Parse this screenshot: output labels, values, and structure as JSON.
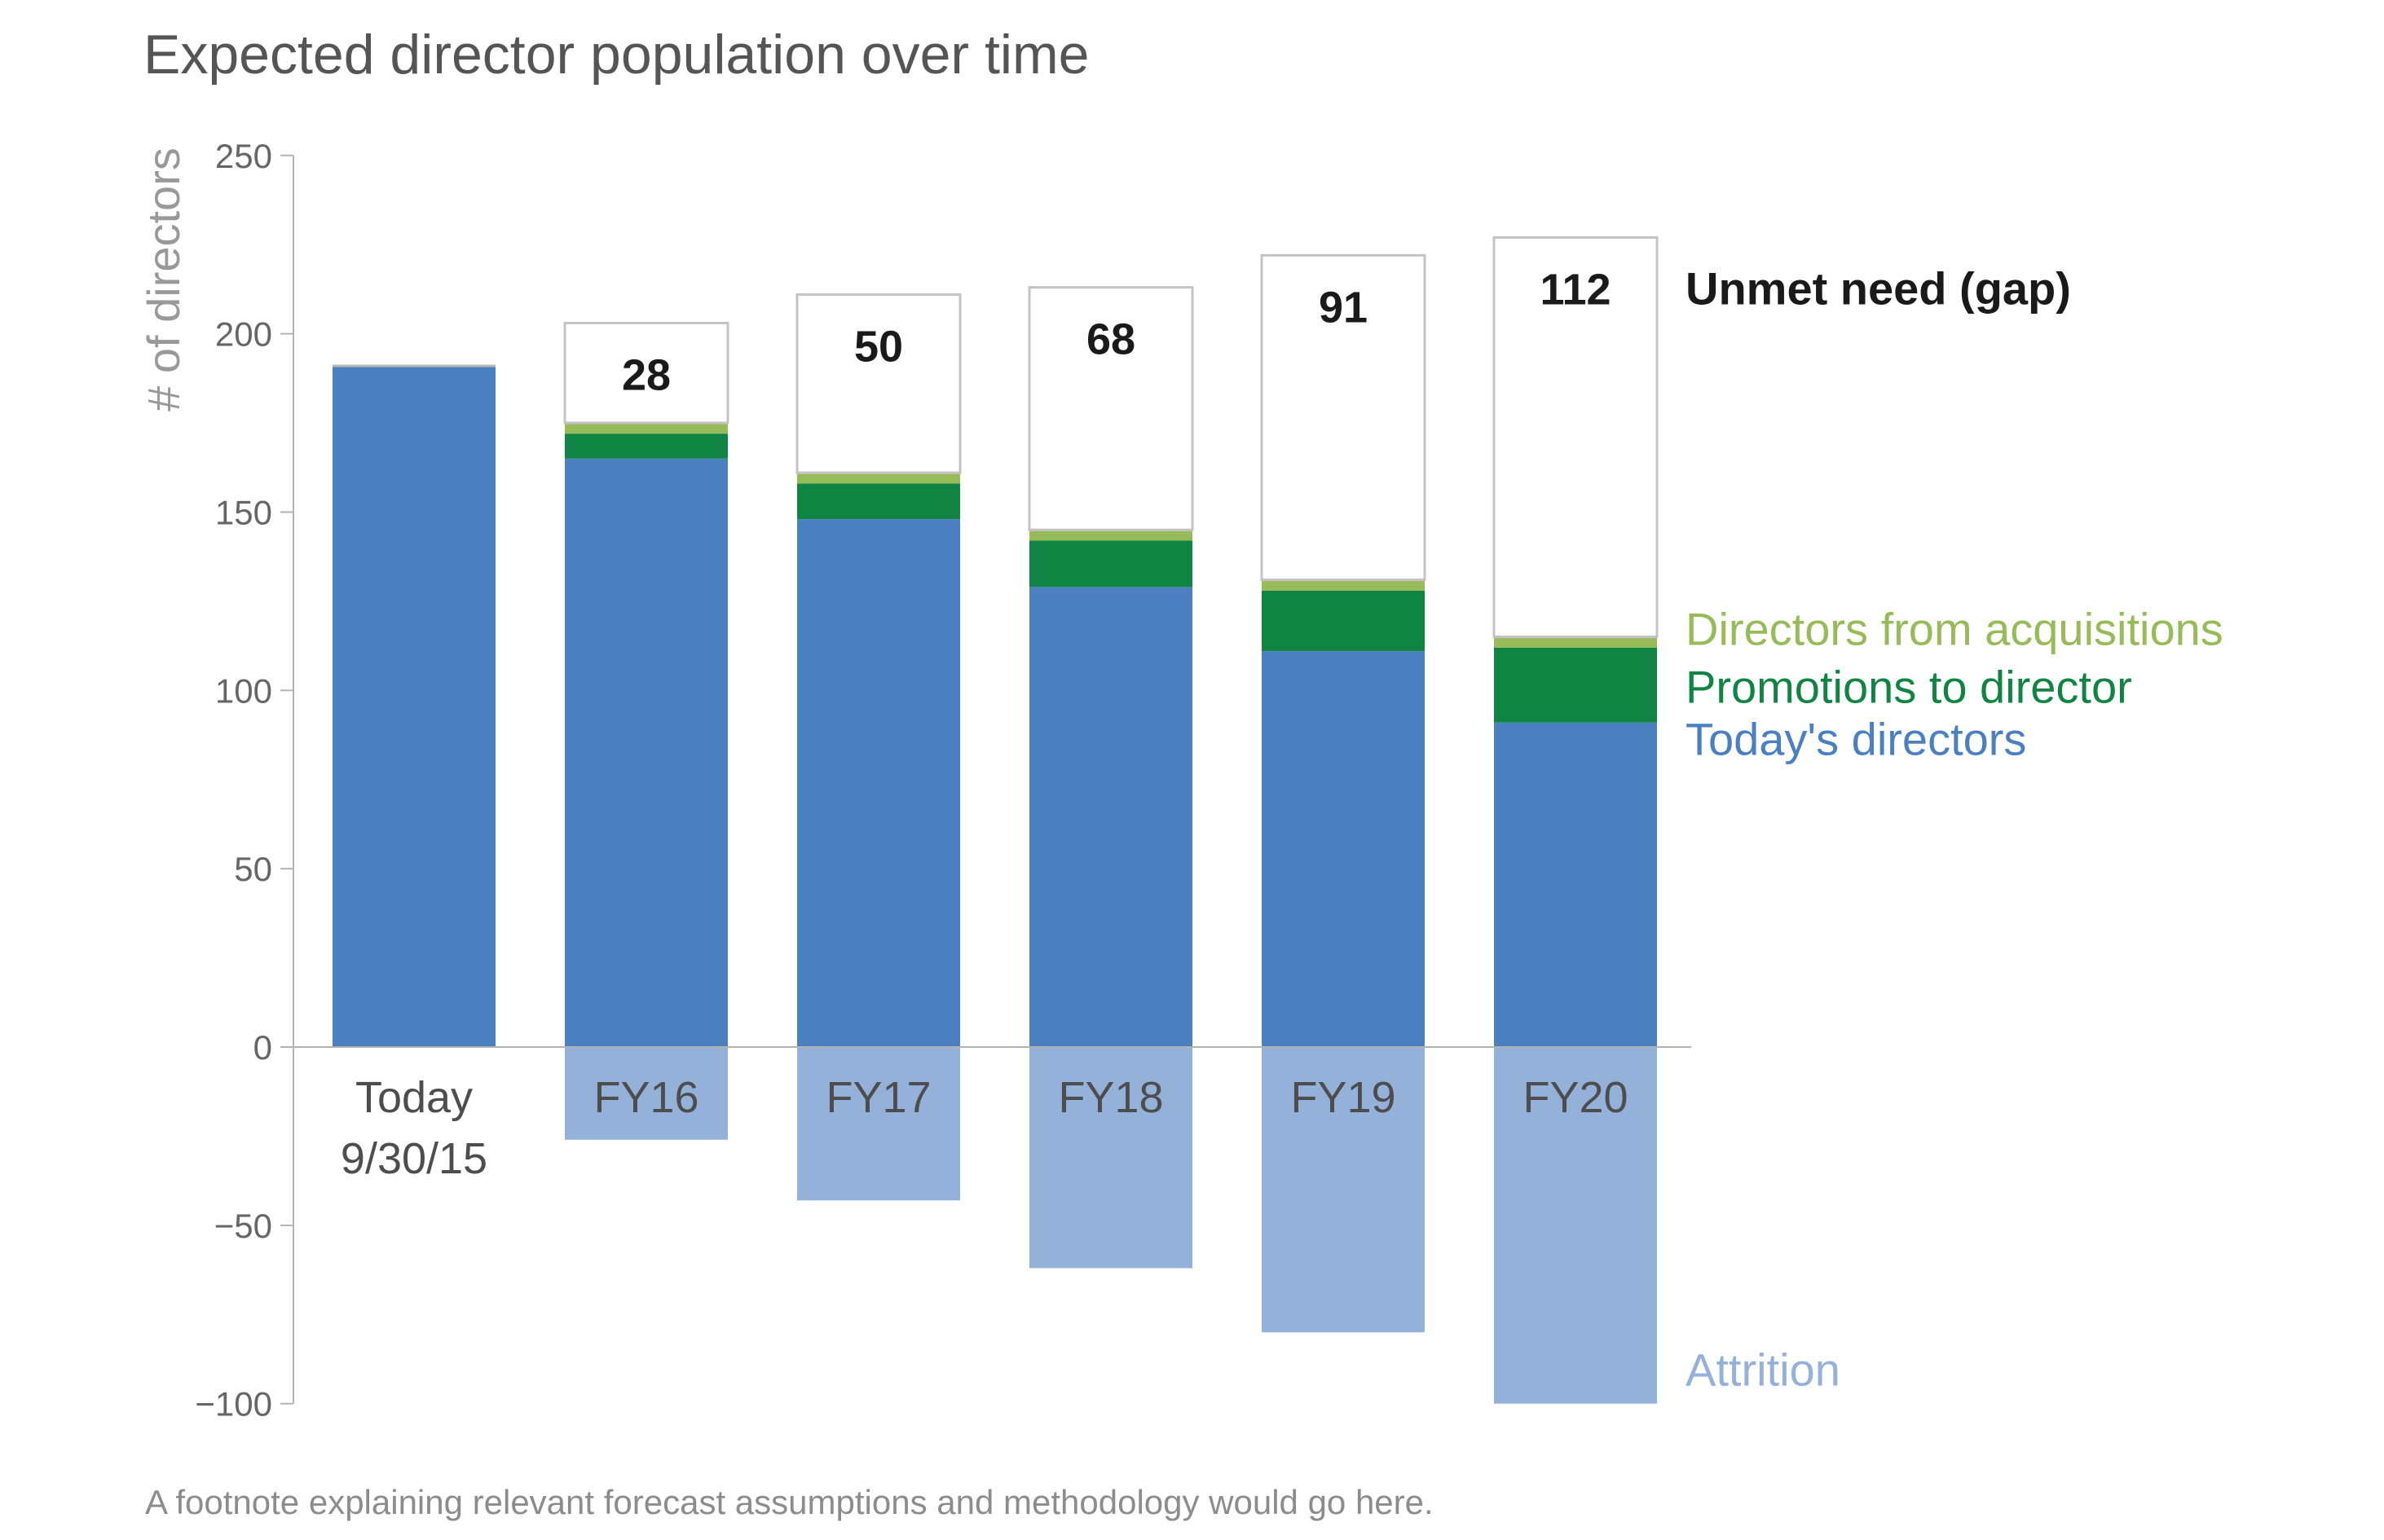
{
  "title": "Expected director population over time",
  "footnote": "A footnote explaining relevant forecast assumptions and methodology would go here.",
  "colors": {
    "todays_directors": "#4a80c0",
    "promotions": "#0f8443",
    "acquisitions": "#98bb59",
    "attrition": "#94b2d9",
    "gap_border": "#c3c3c3",
    "title": "#555555",
    "axis_title": "#999999"
  },
  "chart_data": {
    "type": "bar",
    "stacked": true,
    "title": "Expected director population over time",
    "xlabel": "",
    "ylabel": "# of directors",
    "ylim": [
      -100,
      250
    ],
    "yticks": [
      250,
      200,
      150,
      100,
      50,
      0,
      -50,
      -100
    ],
    "ytick_labels": [
      "250",
      "200",
      "150",
      "100",
      "50",
      "0",
      "−50",
      "−100"
    ],
    "grid": false,
    "categories": [
      {
        "line1": "Today",
        "line2": "9/30/15"
      },
      {
        "line1": "FY16",
        "line2": ""
      },
      {
        "line1": "FY17",
        "line2": ""
      },
      {
        "line1": "FY18",
        "line2": ""
      },
      {
        "line1": "FY19",
        "line2": ""
      },
      {
        "line1": "FY20",
        "line2": ""
      }
    ],
    "series": [
      {
        "name": "Today's directors",
        "values": [
          191,
          165,
          148,
          129,
          111,
          91
        ]
      },
      {
        "name": "Promotions to director",
        "values": [
          0,
          7,
          10,
          13,
          17,
          21
        ]
      },
      {
        "name": "Directors from acquisitions",
        "values": [
          0,
          3,
          3,
          3,
          3,
          3
        ]
      },
      {
        "name": "Unmet need (gap)",
        "values": [
          0,
          28,
          50,
          68,
          91,
          112
        ]
      },
      {
        "name": "Attrition",
        "values": [
          0,
          -26,
          -43,
          -62,
          -80,
          -100
        ]
      }
    ],
    "gap_labels": [
      "",
      "28",
      "50",
      "68",
      "91",
      "112"
    ],
    "legend": [
      {
        "label": "Unmet need (gap)",
        "color": "#1a1a1a",
        "bold": true,
        "anchor": "gap"
      },
      {
        "label": "Directors from acquisitions",
        "color": "#98bb59",
        "bold": false,
        "anchor": "acquisitions"
      },
      {
        "label": "Promotions to director",
        "color": "#0f8443",
        "bold": false,
        "anchor": "promotions"
      },
      {
        "label": "Today's directors",
        "color": "#4a80c0",
        "bold": false,
        "anchor": "todays"
      },
      {
        "label": "Attrition",
        "color": "#94b2d9",
        "bold": false,
        "anchor": "attrition"
      }
    ],
    "legend_position": "right"
  }
}
